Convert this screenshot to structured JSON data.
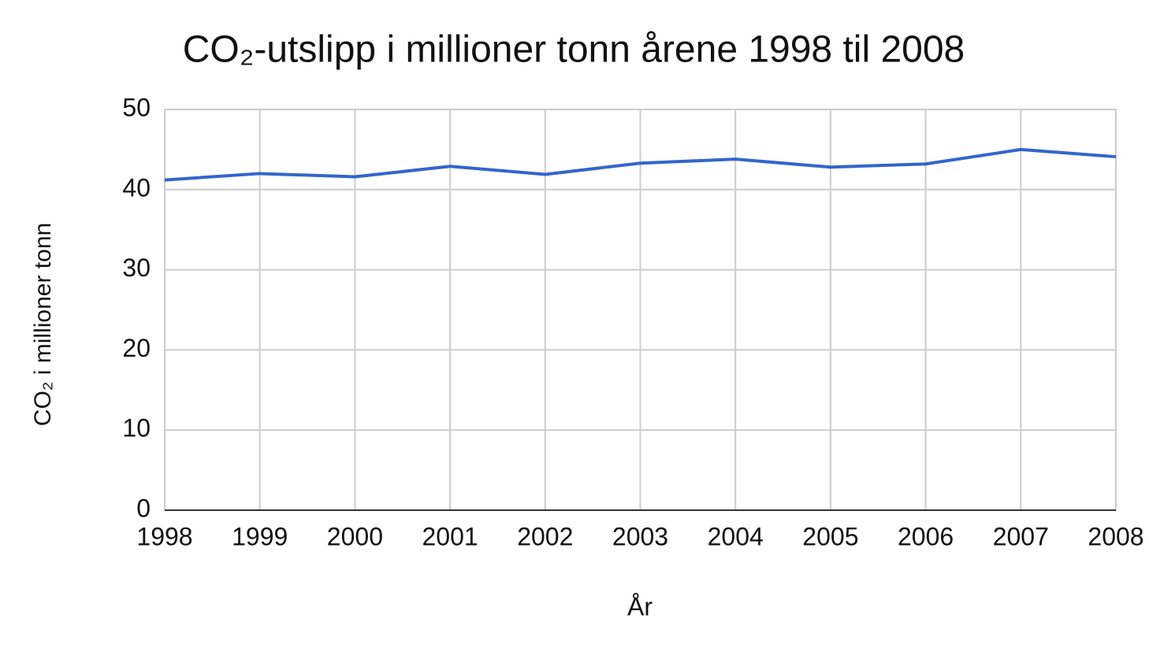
{
  "chart_data": {
    "type": "line",
    "title": "CO₂-utslipp i millioner tonn årene 1998 til 2008",
    "x_label": "År",
    "y_label": "CO₂ i millioner tonn",
    "x": [
      1998,
      1999,
      2000,
      2001,
      2002,
      2003,
      2004,
      2005,
      2006,
      2007,
      2008
    ],
    "values": [
      41.2,
      42.0,
      41.6,
      42.9,
      41.9,
      43.3,
      43.8,
      42.8,
      43.2,
      45.0,
      44.1
    ],
    "color": "#3366cc",
    "xlim": [
      1998,
      2008
    ],
    "xticks": [
      1998,
      1999,
      2000,
      2001,
      2002,
      2003,
      2004,
      2005,
      2006,
      2007,
      2008
    ],
    "ylim": [
      0,
      50
    ],
    "yticks": [
      0,
      10,
      20,
      30,
      40,
      50
    ],
    "grid": true
  }
}
